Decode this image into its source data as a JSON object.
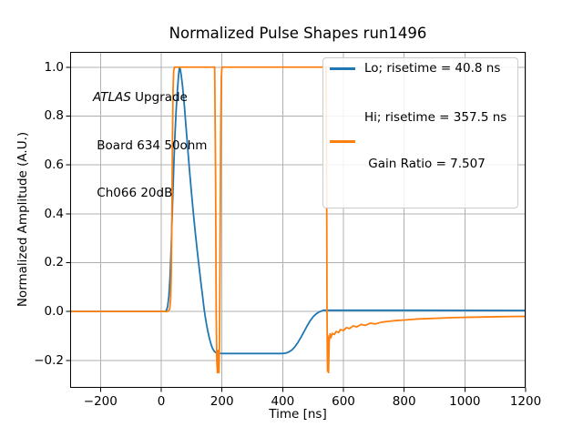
{
  "figure": {
    "title": "Normalized Pulse Shapes run1496",
    "xlabel": "Time [ns]",
    "ylabel": "Normalized Amplitude (A.U.)",
    "background": "#ffffff",
    "annotation": {
      "line1_italic": "ATLAS",
      "line1_rest": " Upgrade",
      "line2": " Board 634 50ohm",
      "line3": " Ch066 20dB"
    }
  },
  "legend": {
    "entries": [
      {
        "label_lines": [
          "Lo; risetime = 40.8 ns"
        ],
        "color": "#1f77b4"
      },
      {
        "label_lines": [
          "Hi; risetime = 357.5 ns",
          " Gain Ratio = 7.507"
        ],
        "color": "#ff7f0e"
      }
    ]
  },
  "chart_data": {
    "type": "line",
    "title": "Normalized Pulse Shapes run1496",
    "xlabel": "Time [ns]",
    "ylabel": "Normalized Amplitude (A.U.)",
    "xlim": [
      -300,
      1200
    ],
    "ylim": [
      -0.3125,
      1.0625
    ],
    "x_ticks": [
      -200,
      0,
      200,
      400,
      600,
      800,
      1000,
      1200
    ],
    "x_tick_labels": [
      "−200",
      "0",
      "200",
      "400",
      "600",
      "800",
      "1000",
      "1200"
    ],
    "y_ticks": [
      -0.2,
      0.0,
      0.2,
      0.4,
      0.6,
      0.8,
      1.0
    ],
    "y_tick_labels": [
      "−0.2",
      "0.0",
      "0.2",
      "0.4",
      "0.6",
      "0.8",
      "1.0"
    ],
    "grid": true,
    "grid_color": "#b0b0b0",
    "spine_color": "#000000",
    "legend_position": "upper right",
    "series": [
      {
        "name": "Lo; risetime = 40.8 ns",
        "color": "#1f77b4",
        "points": [
          [
            -300,
            0
          ],
          [
            -200,
            0
          ],
          [
            -100,
            0
          ],
          [
            0,
            0
          ],
          [
            12,
            0
          ],
          [
            17,
            0.004
          ],
          [
            21,
            0.02
          ],
          [
            25,
            0.06
          ],
          [
            29,
            0.14
          ],
          [
            33,
            0.27
          ],
          [
            37,
            0.43
          ],
          [
            41,
            0.585
          ],
          [
            45,
            0.715
          ],
          [
            49,
            0.82
          ],
          [
            53,
            0.9
          ],
          [
            57,
            0.965
          ],
          [
            60,
            1.0
          ],
          [
            63,
            0.99
          ],
          [
            66,
            0.965
          ],
          [
            70,
            0.925
          ],
          [
            76,
            0.845
          ],
          [
            82,
            0.75
          ],
          [
            88,
            0.655
          ],
          [
            94,
            0.565
          ],
          [
            100,
            0.48
          ],
          [
            106,
            0.4
          ],
          [
            112,
            0.325
          ],
          [
            118,
            0.255
          ],
          [
            124,
            0.19
          ],
          [
            130,
            0.125
          ],
          [
            136,
            0.065
          ],
          [
            141,
            0.012
          ],
          [
            145,
            -0.022
          ],
          [
            149,
            -0.052
          ],
          [
            153,
            -0.078
          ],
          [
            157,
            -0.101
          ],
          [
            161,
            -0.121
          ],
          [
            165,
            -0.138
          ],
          [
            169,
            -0.151
          ],
          [
            173,
            -0.16
          ],
          [
            177,
            -0.166
          ],
          [
            182,
            -0.17
          ],
          [
            190,
            -0.1715
          ],
          [
            205,
            -0.172
          ],
          [
            250,
            -0.172
          ],
          [
            310,
            -0.172
          ],
          [
            360,
            -0.172
          ],
          [
            400,
            -0.172
          ],
          [
            410,
            -0.1705
          ],
          [
            420,
            -0.166
          ],
          [
            430,
            -0.158
          ],
          [
            440,
            -0.145
          ],
          [
            450,
            -0.127
          ],
          [
            460,
            -0.106
          ],
          [
            470,
            -0.083
          ],
          [
            480,
            -0.06
          ],
          [
            490,
            -0.039
          ],
          [
            500,
            -0.022
          ],
          [
            510,
            -0.01
          ],
          [
            520,
            -0.002
          ],
          [
            528,
            0.002
          ],
          [
            534,
            0.005
          ],
          [
            545,
            0.005
          ],
          [
            600,
            0.005
          ],
          [
            700,
            0.005
          ],
          [
            850,
            0.005
          ],
          [
            1000,
            0.0045
          ],
          [
            1200,
            0.004
          ]
        ]
      },
      {
        "name": "Hi; risetime = 357.5 ns; Gain Ratio = 7.507",
        "color": "#ff7f0e",
        "points": [
          [
            -300,
            0
          ],
          [
            -200,
            0
          ],
          [
            -100,
            0
          ],
          [
            0,
            0
          ],
          [
            18,
            0
          ],
          [
            24,
            0.002
          ],
          [
            28,
            0.012
          ],
          [
            31,
            0.05
          ],
          [
            33,
            0.15
          ],
          [
            35,
            0.38
          ],
          [
            37,
            0.7
          ],
          [
            39,
            0.91
          ],
          [
            41,
            0.985
          ],
          [
            44,
            1.0
          ],
          [
            100,
            1.0
          ],
          [
            170,
            1.0
          ],
          [
            176,
            1.0
          ],
          [
            179,
            0.55
          ],
          [
            181,
            0.0
          ],
          [
            183,
            -0.2
          ],
          [
            185,
            -0.25
          ],
          [
            187,
            -0.16
          ],
          [
            188,
            -0.23
          ],
          [
            190,
            -0.25
          ],
          [
            192,
            -0.12
          ],
          [
            194,
            0.3
          ],
          [
            196,
            0.75
          ],
          [
            198,
            0.96
          ],
          [
            200,
            1.0
          ],
          [
            280,
            1.0
          ],
          [
            400,
            1.0
          ],
          [
            500,
            1.0
          ],
          [
            543,
            1.0
          ],
          [
            545,
            0.45
          ],
          [
            546,
            0.0
          ],
          [
            547,
            -0.17
          ],
          [
            548,
            -0.245
          ],
          [
            549,
            -0.1
          ],
          [
            550,
            -0.155
          ],
          [
            551,
            -0.25
          ],
          [
            553,
            -0.125
          ],
          [
            556,
            -0.092
          ],
          [
            559,
            -0.107
          ],
          [
            563,
            -0.09
          ],
          [
            570,
            -0.094
          ],
          [
            576,
            -0.082
          ],
          [
            584,
            -0.086
          ],
          [
            590,
            -0.074
          ],
          [
            600,
            -0.078
          ],
          [
            610,
            -0.066
          ],
          [
            620,
            -0.07
          ],
          [
            632,
            -0.059
          ],
          [
            644,
            -0.063
          ],
          [
            658,
            -0.053
          ],
          [
            672,
            -0.057
          ],
          [
            688,
            -0.048
          ],
          [
            704,
            -0.051
          ],
          [
            725,
            -0.044
          ],
          [
            750,
            -0.04
          ],
          [
            775,
            -0.037
          ],
          [
            800,
            -0.035
          ],
          [
            840,
            -0.031
          ],
          [
            880,
            -0.029
          ],
          [
            920,
            -0.027
          ],
          [
            960,
            -0.025
          ],
          [
            1000,
            -0.024
          ],
          [
            1080,
            -0.022
          ],
          [
            1160,
            -0.0205
          ],
          [
            1200,
            -0.02
          ]
        ]
      }
    ]
  }
}
